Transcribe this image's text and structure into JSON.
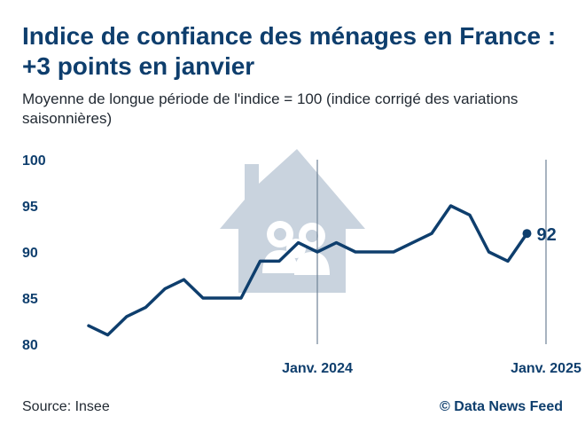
{
  "title": "Indice de confiance des ménages en France : +3 points en janvier",
  "subtitle": "Moyenne de longue période de l'indice = 100 (indice corrigé des variations saisonnières)",
  "source": "Source: Insee",
  "credit": "© Data News Feed",
  "icon": "house-family-icon",
  "colors": {
    "line": "#0e3e6d",
    "title": "#0e3e6d",
    "watermark": "#c9d3de",
    "marker_line": "#6f8196"
  },
  "chart_data": {
    "type": "line",
    "title": "Indice de confiance des ménages en France : +3 points en janvier",
    "subtitle": "Moyenne de longue période de l'indice = 100 (indice corrigé des variations saisonnières)",
    "ylim": [
      80,
      100
    ],
    "yticks": [
      80,
      85,
      90,
      95,
      100
    ],
    "grid": false,
    "x": [
      "2023-01",
      "2023-02",
      "2023-03",
      "2023-04",
      "2023-05",
      "2023-06",
      "2023-07",
      "2023-08",
      "2023-09",
      "2023-10",
      "2023-11",
      "2023-12",
      "2024-01",
      "2024-02",
      "2024-03",
      "2024-04",
      "2024-05",
      "2024-06",
      "2024-07",
      "2024-08",
      "2024-09",
      "2024-10",
      "2024-11",
      "2024-12",
      "2025-01"
    ],
    "values": [
      82,
      81,
      83,
      84,
      86,
      87,
      85,
      85,
      85,
      89,
      89,
      91,
      90,
      91,
      90,
      90,
      90,
      91,
      92,
      95,
      94,
      90,
      89,
      92,
      null
    ],
    "markers": [
      {
        "x": "2024-01",
        "label": "Janv. 2024"
      },
      {
        "x": "2025-01",
        "label": "Janv. 2025"
      }
    ],
    "last_value_label": "92"
  }
}
